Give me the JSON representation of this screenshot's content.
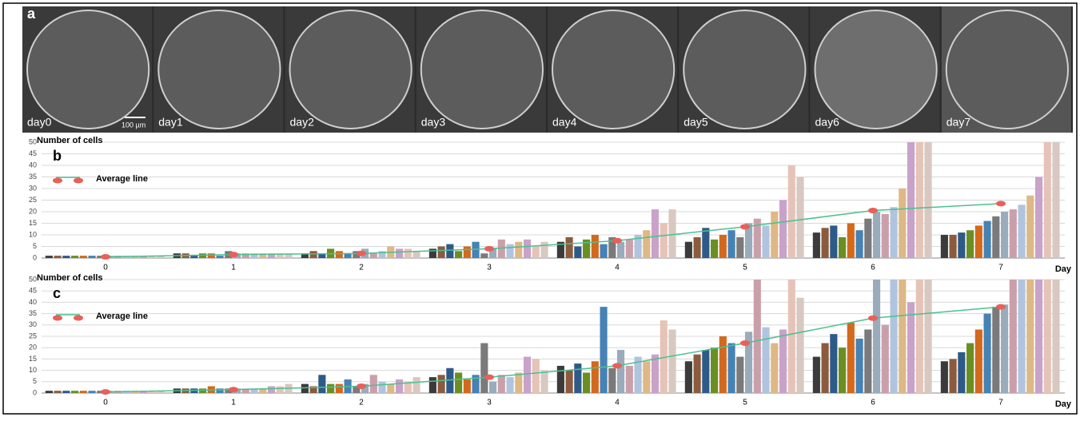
{
  "panel_a": {
    "label": "a",
    "scale_bar": "100 µm",
    "images": [
      "day0",
      "day1",
      "day2",
      "day3",
      "day4",
      "day5",
      "day6",
      "day7"
    ]
  },
  "chart_data": [
    {
      "type": "bar",
      "panel": "b",
      "y_label": "Number of cells",
      "x_label": "Day",
      "categories": [
        "0",
        "1",
        "2",
        "3",
        "4",
        "5",
        "6",
        "7"
      ],
      "ylim": [
        0,
        50
      ],
      "yticks": [
        0,
        5,
        10,
        15,
        20,
        25,
        30,
        35,
        40,
        45,
        50
      ],
      "grid": true,
      "palette": [
        "#3b3b3b",
        "#8c5a3c",
        "#2e5a87",
        "#6b8e23",
        "#d2691e",
        "#4682b4",
        "#7a7a7a",
        "#9aabbb",
        "#c9a0aa",
        "#b0c4de",
        "#deb887",
        "#c8a2c8",
        "#e6c3b8",
        "#d8c8c0"
      ],
      "groups": [
        [
          1,
          1,
          1,
          1,
          1,
          1,
          1,
          1,
          1,
          1,
          1,
          1,
          1,
          1
        ],
        [
          2,
          2,
          1,
          2,
          2,
          1,
          3,
          2,
          2,
          2,
          2,
          2,
          2,
          2
        ],
        [
          2,
          3,
          2,
          4,
          3,
          2,
          3,
          4,
          2,
          3,
          5,
          4,
          4,
          3
        ],
        [
          4,
          5,
          6,
          3,
          5,
          7,
          2,
          4,
          8,
          6,
          7,
          8,
          5,
          7
        ],
        [
          7,
          9,
          5,
          8,
          10,
          6,
          9,
          7,
          8,
          10,
          12,
          21,
          15,
          21
        ],
        [
          7,
          9,
          13,
          8,
          10,
          12,
          9,
          15,
          17,
          14,
          20,
          25,
          40,
          35
        ],
        [
          11,
          13,
          14,
          9,
          15,
          12,
          17,
          20,
          19,
          22,
          30,
          50,
          50,
          50
        ],
        [
          10,
          10,
          11,
          12,
          14,
          16,
          18,
          20,
          21,
          23,
          27,
          35,
          50,
          50
        ]
      ],
      "average": {
        "name": "Average line",
        "color": "#4dc08f",
        "marker_color": "#e8605a",
        "values": [
          0.5,
          1.5,
          2,
          4,
          7.5,
          13.5,
          20.5,
          23.5
        ]
      }
    },
    {
      "type": "bar",
      "panel": "c",
      "y_label": "Number of cells",
      "x_label": "Day",
      "categories": [
        "0",
        "1",
        "2",
        "3",
        "4",
        "5",
        "6",
        "7"
      ],
      "ylim": [
        0,
        50
      ],
      "yticks": [
        0,
        5,
        10,
        15,
        20,
        25,
        30,
        35,
        40,
        45,
        50
      ],
      "grid": true,
      "palette": [
        "#3b3b3b",
        "#8c5a3c",
        "#2e5a87",
        "#6b8e23",
        "#d2691e",
        "#4682b4",
        "#7a7a7a",
        "#9aabbb",
        "#c9a0aa",
        "#b0c4de",
        "#deb887",
        "#c8a2c8",
        "#e6c3b8",
        "#d8c8c0"
      ],
      "groups": [
        [
          1,
          1,
          1,
          1,
          1,
          1,
          1,
          1,
          1,
          1,
          1,
          1,
          1,
          1
        ],
        [
          2,
          2,
          2,
          2,
          3,
          2,
          2,
          2,
          2,
          2,
          2,
          3,
          3,
          4
        ],
        [
          4,
          3,
          8,
          4,
          4,
          6,
          3,
          4,
          8,
          5,
          4,
          6,
          5,
          7
        ],
        [
          7,
          8,
          11,
          9,
          6,
          8,
          22,
          5,
          8,
          7,
          9,
          16,
          15,
          10
        ],
        [
          12,
          10,
          13,
          9,
          14,
          38,
          11,
          19,
          12,
          16,
          14,
          17,
          32,
          28
        ],
        [
          14,
          17,
          19,
          20,
          25,
          22,
          16,
          27,
          50,
          29,
          22,
          28,
          50,
          42
        ],
        [
          16,
          22,
          26,
          20,
          31,
          24,
          28,
          50,
          30,
          50,
          50,
          40,
          50,
          50
        ],
        [
          14,
          15,
          18,
          22,
          28,
          35,
          38,
          39,
          50,
          50,
          50,
          50,
          50,
          50
        ]
      ],
      "average": {
        "name": "Average line",
        "color": "#4dc08f",
        "marker_color": "#e8605a",
        "values": [
          0.5,
          1.5,
          3,
          7,
          12,
          22,
          33,
          38
        ]
      }
    }
  ]
}
